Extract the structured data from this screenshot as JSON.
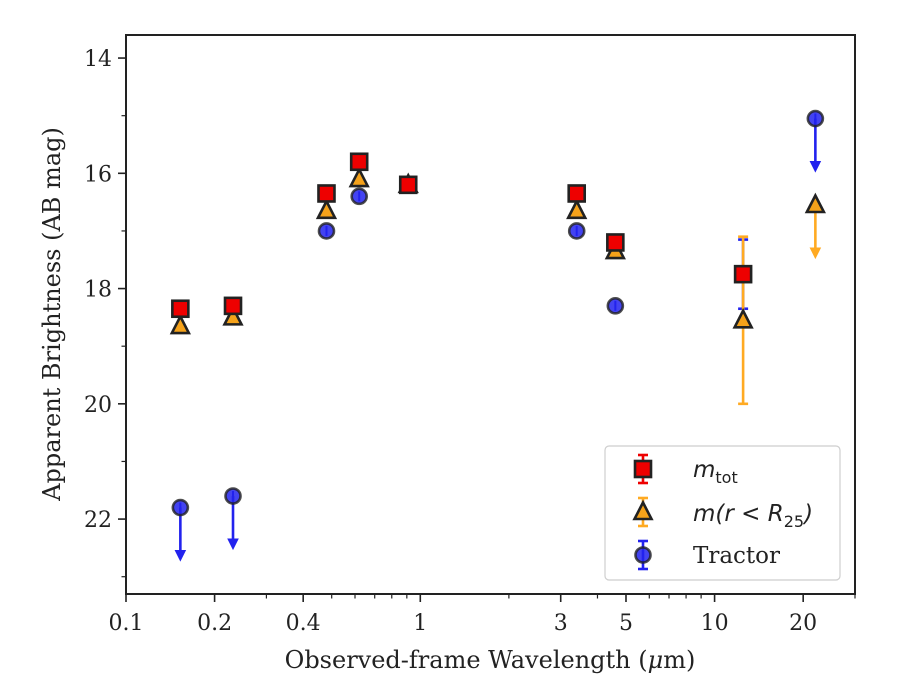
{
  "chart_data": {
    "type": "scatter",
    "title": "",
    "xlabel_prefix": "Observed-frame Wavelength (",
    "xlabel_mu": "μ",
    "xlabel_suffix": "m)",
    "ylabel": "Apparent Brightness (AB mag)",
    "x_scale": "log",
    "xlim": [
      0.1,
      30
    ],
    "ylim": [
      23.3,
      13.6
    ],
    "y_inverted": true,
    "grid": false,
    "legend_position": "bottom-right",
    "x_ticks": [
      {
        "value": 0.1,
        "label": "0.1"
      },
      {
        "value": 0.2,
        "label": "0.2"
      },
      {
        "value": 0.4,
        "label": "0.4"
      },
      {
        "value": 1,
        "label": "1"
      },
      {
        "value": 3,
        "label": "3"
      },
      {
        "value": 5,
        "label": "5"
      },
      {
        "value": 10,
        "label": "10"
      },
      {
        "value": 20,
        "label": "20"
      }
    ],
    "x_minor_ticks": [
      0.3,
      0.5,
      0.6,
      0.7,
      0.8,
      0.9,
      2,
      4,
      6,
      7,
      8,
      9,
      30
    ],
    "y_ticks": [
      {
        "value": 14,
        "label": "14"
      },
      {
        "value": 16,
        "label": "16"
      },
      {
        "value": 18,
        "label": "18"
      },
      {
        "value": 20,
        "label": "20"
      },
      {
        "value": 22,
        "label": "22"
      }
    ],
    "y_minor_ticks": [
      15,
      17,
      19,
      21,
      23
    ],
    "series": [
      {
        "key": "tractor",
        "legend_text": "Tractor",
        "marker": "circle",
        "color": "#2222ee",
        "error_color": "#2222ee",
        "points": [
          {
            "x": 0.153,
            "y": 21.8,
            "upper_limit": true
          },
          {
            "x": 0.231,
            "y": 21.6,
            "upper_limit": true
          },
          {
            "x": 0.48,
            "y": 17.0
          },
          {
            "x": 0.62,
            "y": 16.4
          },
          {
            "x": 0.91,
            "y": 16.2
          },
          {
            "x": 3.4,
            "y": 17.0
          },
          {
            "x": 4.6,
            "y": 18.3
          },
          {
            "x": 12.5,
            "y": 17.75,
            "err": 0.6
          },
          {
            "x": 22.0,
            "y": 15.05,
            "upper_limit": true
          }
        ]
      },
      {
        "key": "mr25",
        "legend_math": "m(r < R",
        "legend_sub": "25",
        "legend_close": ")",
        "marker": "triangle",
        "color": "#f5a21a",
        "error_color": "#ffaa22",
        "points": [
          {
            "x": 0.153,
            "y": 18.65
          },
          {
            "x": 0.231,
            "y": 18.5
          },
          {
            "x": 0.48,
            "y": 16.65
          },
          {
            "x": 0.62,
            "y": 16.1
          },
          {
            "x": 0.91,
            "y": 16.2
          },
          {
            "x": 3.4,
            "y": 16.65
          },
          {
            "x": 4.6,
            "y": 17.35
          },
          {
            "x": 12.5,
            "y": 18.55,
            "err": 1.45
          },
          {
            "x": 22.0,
            "y": 16.55,
            "upper_limit": true
          }
        ]
      },
      {
        "key": "mtot",
        "legend_math": "m",
        "legend_sub": "tot",
        "marker": "square",
        "color": "#ee0000",
        "error_color": "#ee0000",
        "points": [
          {
            "x": 0.153,
            "y": 18.35
          },
          {
            "x": 0.231,
            "y": 18.3
          },
          {
            "x": 0.48,
            "y": 16.35
          },
          {
            "x": 0.62,
            "y": 15.8
          },
          {
            "x": 0.91,
            "y": 16.2
          },
          {
            "x": 3.4,
            "y": 16.35
          },
          {
            "x": 4.6,
            "y": 17.2
          },
          {
            "x": 12.5,
            "y": 17.75
          }
        ]
      }
    ]
  }
}
